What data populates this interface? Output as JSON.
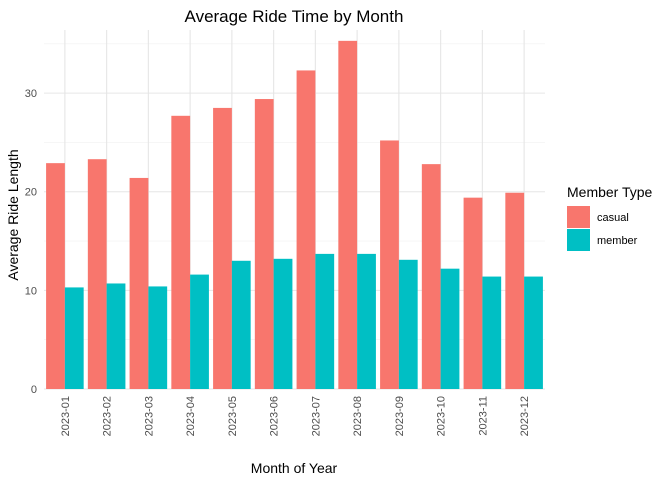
{
  "chart_data": {
    "type": "bar",
    "title": "Average Ride Time by Month",
    "xlabel": "Month of Year",
    "ylabel": "Average Ride Length",
    "categories": [
      "2023-01",
      "2023-02",
      "2023-03",
      "2023-04",
      "2023-05",
      "2023-06",
      "2023-07",
      "2023-08",
      "2023-09",
      "2023-10",
      "2023-11",
      "2023-12"
    ],
    "series": [
      {
        "name": "casual",
        "color": "#F8766D",
        "values": [
          22.9,
          23.3,
          21.4,
          27.7,
          28.5,
          29.4,
          32.3,
          35.3,
          25.2,
          22.8,
          19.4,
          19.9
        ]
      },
      {
        "name": "member",
        "color": "#00BFC4",
        "values": [
          10.3,
          10.7,
          10.4,
          11.6,
          13.0,
          13.2,
          13.7,
          13.7,
          13.1,
          12.2,
          11.4,
          11.4
        ]
      }
    ],
    "ylim": [
      0,
      36.4
    ],
    "yticks": [
      0,
      10,
      20,
      30
    ],
    "grid": true,
    "legend": {
      "title": "Member Type",
      "placement": "right"
    }
  }
}
